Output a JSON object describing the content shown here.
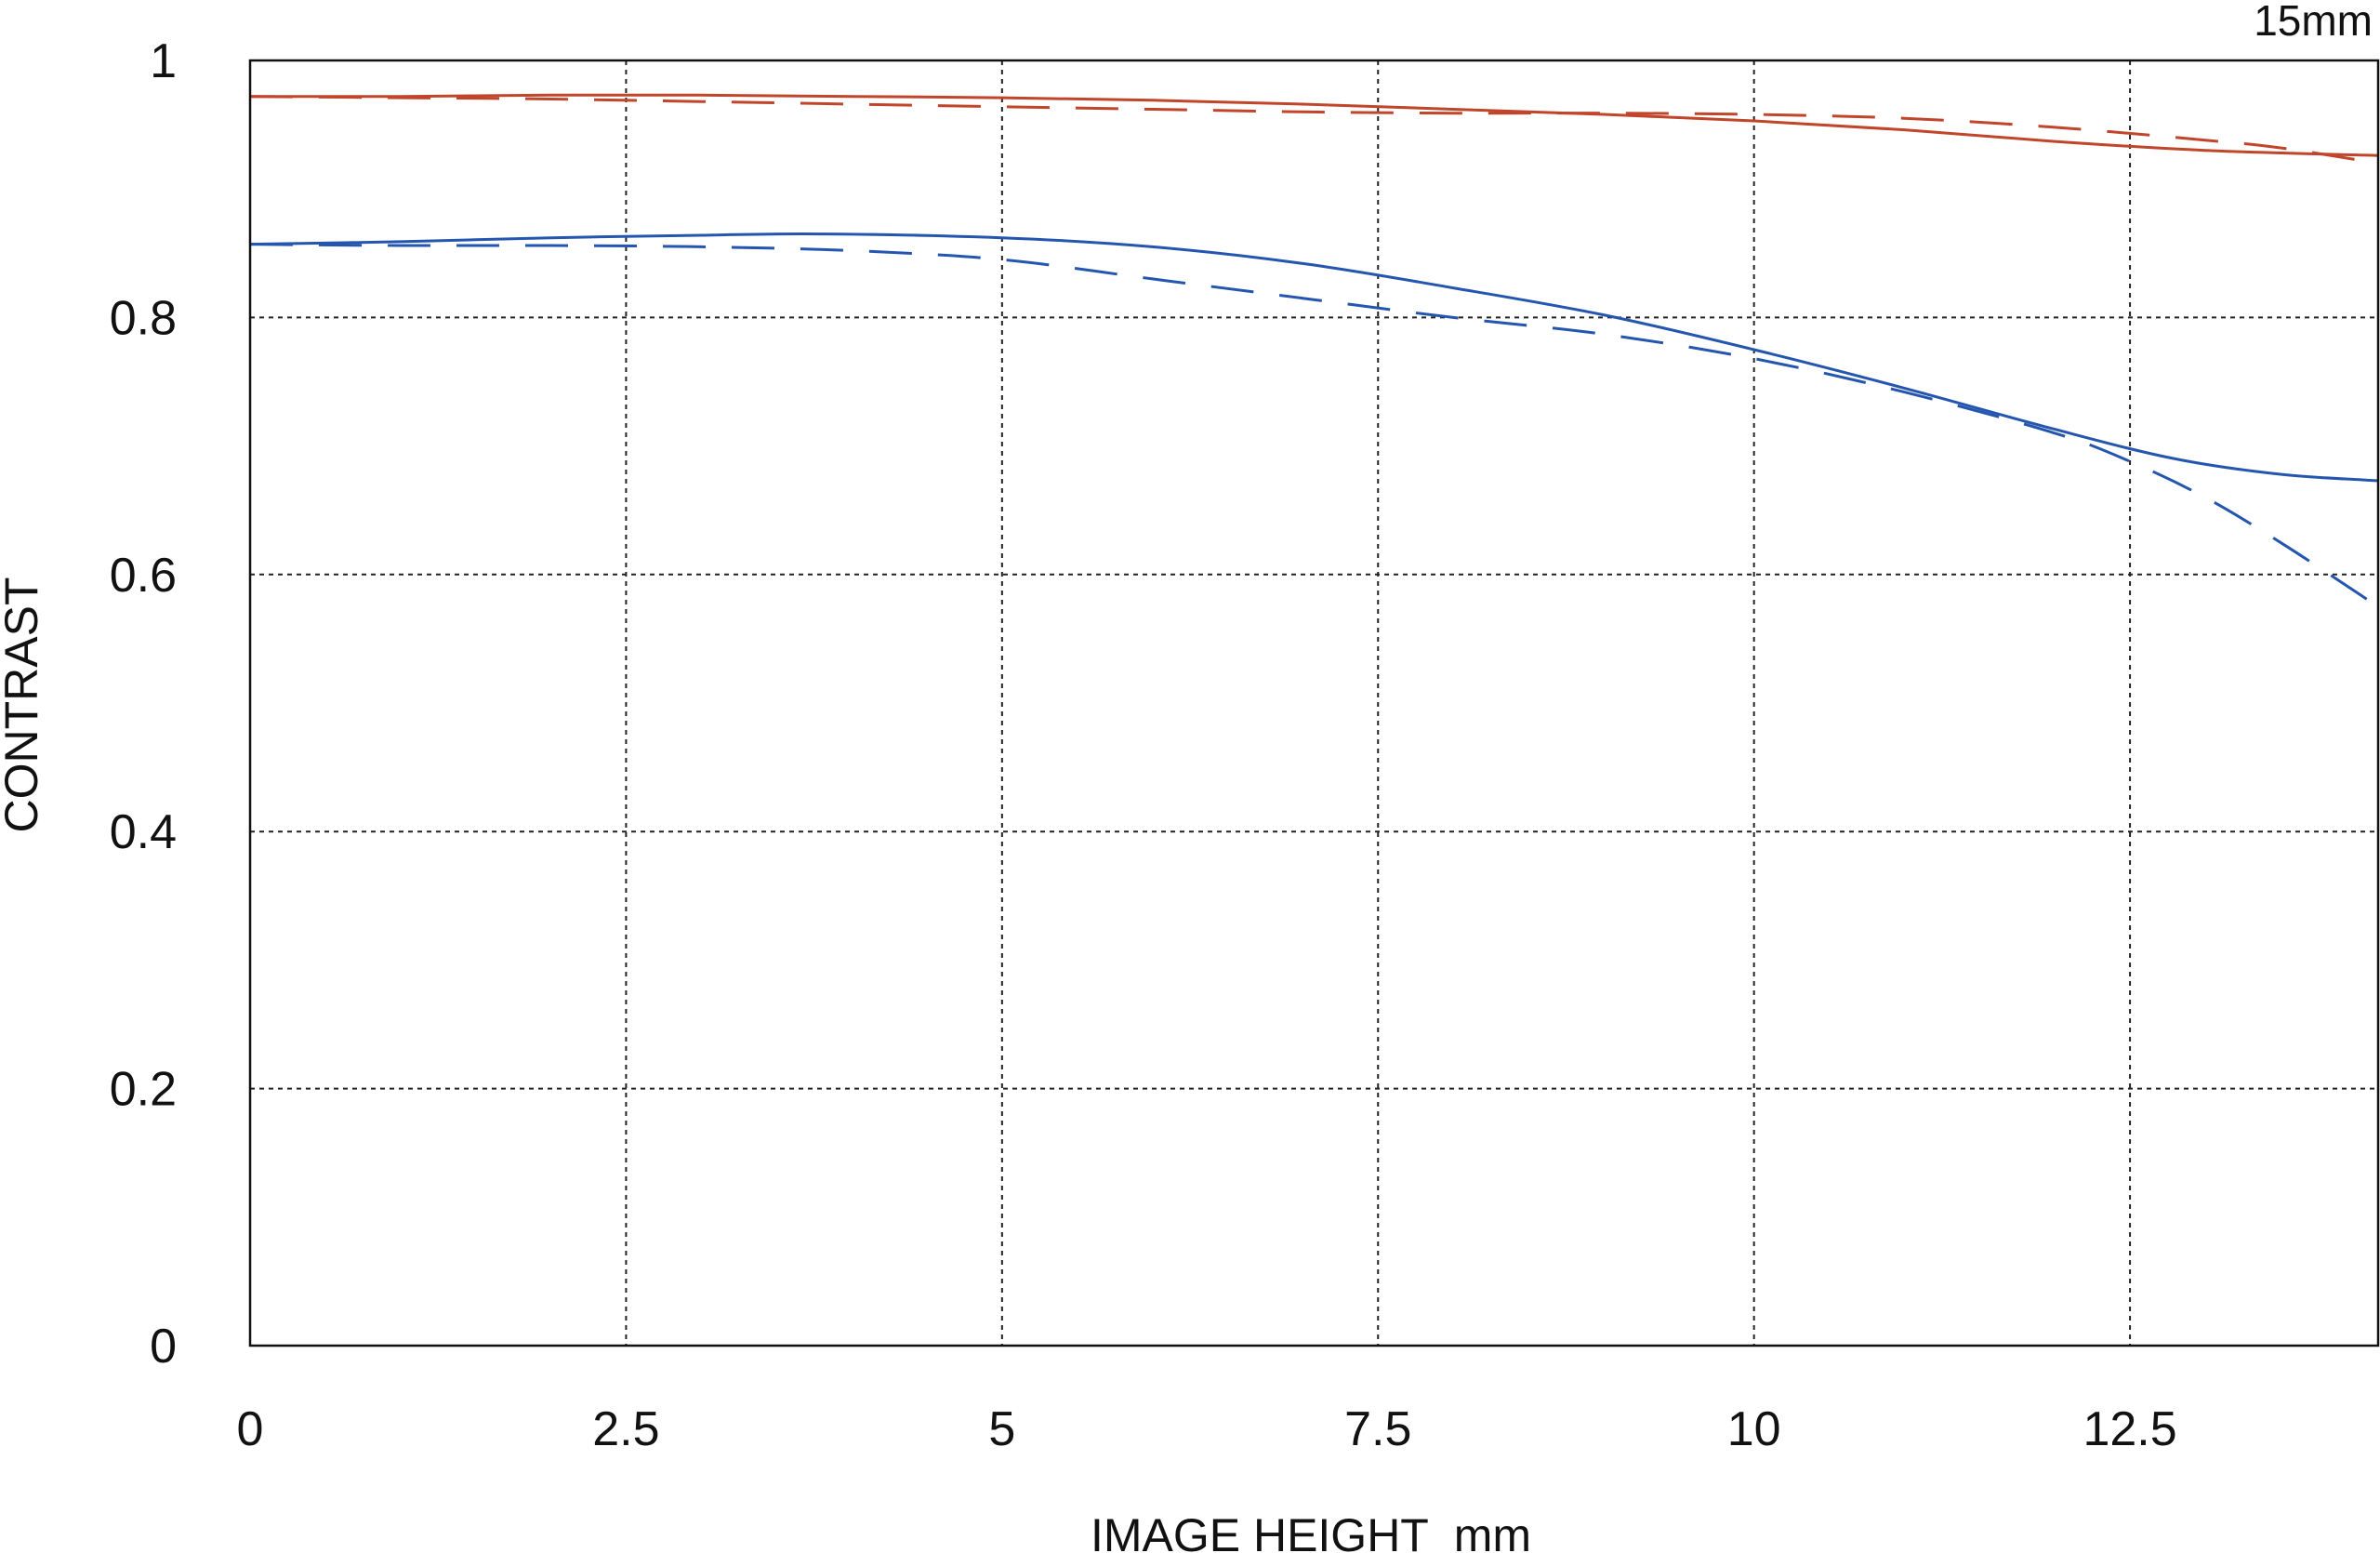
{
  "chart_data": {
    "type": "line",
    "title": "15mm",
    "xlabel": "IMAGE HEIGHT  mm",
    "ylabel": "CONTRAST",
    "xlim": [
      0,
      14.15
    ],
    "ylim": [
      0,
      1
    ],
    "x_ticks": [
      0,
      2.5,
      5,
      7.5,
      10,
      12.5
    ],
    "x_tick_labels": [
      "0",
      "2.5",
      "5",
      "7.5",
      "10",
      "12.5"
    ],
    "y_ticks": [
      0,
      0.2,
      0.4,
      0.6,
      0.8,
      1
    ],
    "y_tick_labels": [
      "0",
      "0.2",
      "0.4",
      "0.6",
      "0.8",
      "1"
    ],
    "grid": true,
    "legend": "none",
    "series": [
      {
        "color": "#c0452a",
        "style": "solid",
        "x": [
          0,
          1,
          2,
          3,
          4,
          5,
          6,
          7,
          8,
          9,
          10,
          11,
          12,
          13,
          14.15
        ],
        "y": [
          0.972,
          0.972,
          0.973,
          0.973,
          0.972,
          0.971,
          0.969,
          0.966,
          0.962,
          0.958,
          0.953,
          0.946,
          0.937,
          0.93,
          0.926
        ]
      },
      {
        "color": "#c0452a",
        "style": "dashed",
        "x": [
          0,
          1,
          2,
          3,
          4,
          5,
          6,
          7,
          8,
          9,
          10,
          11,
          12,
          13,
          13.5,
          14.15
        ],
        "y": [
          0.972,
          0.971,
          0.97,
          0.968,
          0.966,
          0.964,
          0.962,
          0.96,
          0.959,
          0.959,
          0.958,
          0.955,
          0.948,
          0.938,
          0.932,
          0.92
        ]
      },
      {
        "color": "#2456b0",
        "style": "solid",
        "x": [
          0,
          1,
          2,
          3,
          3.8,
          5,
          6,
          7,
          8,
          9,
          10,
          11,
          12,
          12.8,
          13.5,
          14.15
        ],
        "y": [
          0.857,
          0.859,
          0.862,
          0.864,
          0.865,
          0.862,
          0.855,
          0.842,
          0.823,
          0.802,
          0.775,
          0.745,
          0.713,
          0.69,
          0.678,
          0.673
        ]
      },
      {
        "color": "#2456b0",
        "style": "dashed",
        "x": [
          0,
          1,
          2,
          3,
          4,
          5,
          6,
          7,
          8,
          9,
          10,
          11,
          12,
          12.5,
          13,
          13.5,
          14.15
        ],
        "y": [
          0.857,
          0.856,
          0.856,
          0.855,
          0.852,
          0.845,
          0.83,
          0.815,
          0.8,
          0.787,
          0.768,
          0.742,
          0.71,
          0.688,
          0.66,
          0.625,
          0.575
        ]
      }
    ]
  }
}
